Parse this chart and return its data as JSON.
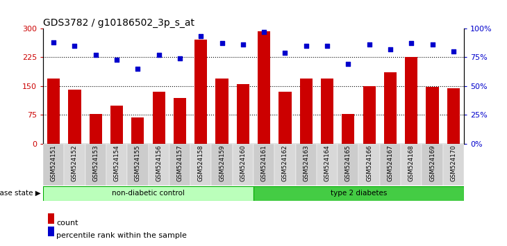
{
  "title": "GDS3782 / g10186502_3p_s_at",
  "samples": [
    "GSM524151",
    "GSM524152",
    "GSM524153",
    "GSM524154",
    "GSM524155",
    "GSM524156",
    "GSM524157",
    "GSM524158",
    "GSM524159",
    "GSM524160",
    "GSM524161",
    "GSM524162",
    "GSM524163",
    "GSM524164",
    "GSM524165",
    "GSM524166",
    "GSM524167",
    "GSM524168",
    "GSM524169",
    "GSM524170"
  ],
  "counts": [
    170,
    140,
    78,
    100,
    68,
    135,
    120,
    270,
    170,
    155,
    293,
    135,
    170,
    170,
    78,
    150,
    185,
    225,
    148,
    145
  ],
  "percentiles": [
    88,
    85,
    77,
    73,
    65,
    77,
    74,
    93,
    87,
    86,
    97,
    79,
    85,
    85,
    69,
    86,
    82,
    87,
    86,
    80
  ],
  "non_diabetic_count": 10,
  "type2_count": 10,
  "bar_color": "#cc0000",
  "dot_color": "#0000cc",
  "group1_label": "non-diabetic control",
  "group2_label": "type 2 diabetes",
  "group1_color": "#bbffbb",
  "group2_color": "#44cc44",
  "ylim_left": [
    0,
    300
  ],
  "ylim_right": [
    0,
    100
  ],
  "yticks_left": [
    0,
    75,
    150,
    225,
    300
  ],
  "yticks_right": [
    0,
    25,
    50,
    75,
    100
  ],
  "ytick_labels_left": [
    "0",
    "75",
    "150",
    "225",
    "300"
  ],
  "ytick_labels_right": [
    "0%",
    "25%",
    "50%",
    "75%",
    "100%"
  ],
  "hlines": [
    75,
    150,
    225
  ],
  "legend_count_label": "count",
  "legend_pct_label": "percentile rank within the sample",
  "disease_state_label": "disease state",
  "title_fontsize": 10,
  "axis_label_color_left": "#cc0000",
  "axis_label_color_right": "#0000cc",
  "background_color": "#ffffff",
  "tick_bg_color": "#cccccc"
}
